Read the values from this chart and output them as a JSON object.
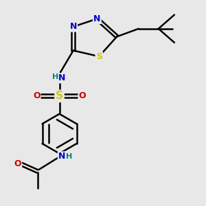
{
  "background_color": "#e8e8e8",
  "line_color": "#000000",
  "bond_width": 1.8,
  "figsize": [
    3.0,
    3.0
  ],
  "dpi": 100,
  "colors": {
    "N": "#0000cc",
    "S_ring": "#cccc00",
    "S_sulfo": "#cccc00",
    "O": "#cc0000",
    "H": "#008080",
    "C": "#000000"
  }
}
